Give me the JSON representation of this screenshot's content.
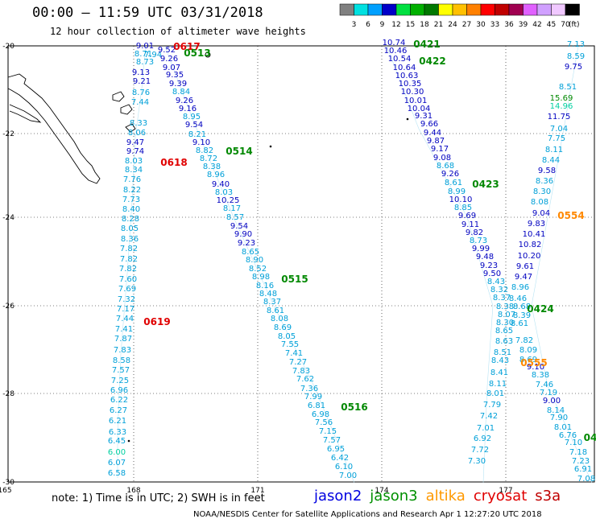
{
  "header": {
    "title": "00:00 – 11:59 UTC 03/31/2018",
    "subtitle": "12 hour collection of altimeter wave heights"
  },
  "colorbar": {
    "bins": [
      {
        "color": "#808080",
        "label": "3"
      },
      {
        "color": "#00e0e0",
        "label": "6"
      },
      {
        "color": "#00a0ff",
        "label": "9"
      },
      {
        "color": "#0000c8",
        "label": "12"
      },
      {
        "color": "#00e040",
        "label": "15"
      },
      {
        "color": "#00b000",
        "label": "18"
      },
      {
        "color": "#007800",
        "label": "21"
      },
      {
        "color": "#ffff00",
        "label": "24"
      },
      {
        "color": "#ffc000",
        "label": "27"
      },
      {
        "color": "#ff8000",
        "label": "30"
      },
      {
        "color": "#ff0000",
        "label": "33"
      },
      {
        "color": "#c00000",
        "label": "36"
      },
      {
        "color": "#a00050",
        "label": "39"
      },
      {
        "color": "#e060ff",
        "label": "42"
      },
      {
        "color": "#d0a0ff",
        "label": "45"
      },
      {
        "color": "#f0c8ff",
        "label": "70"
      },
      {
        "color": "#000000",
        "label": "(ft)"
      }
    ]
  },
  "axes": {
    "x_ticks": [
      "165",
      "168",
      "171",
      "174",
      "177"
    ],
    "y_ticks": [
      "-20",
      "-22",
      "-24",
      "-26",
      "-28",
      "-30"
    ]
  },
  "colors": {
    "c1": "#00a0d8",
    "c2": "#0000c0",
    "c3": "#00d0a0",
    "red": "#e00000",
    "green": "#008800",
    "orange": "#ff8800",
    "jason2": "#0000e0",
    "jason3": "#009000",
    "altika": "#ff9900",
    "cryosat": "#e00000",
    "s3a": "#c00000"
  },
  "tracks": [
    {
      "name": "track-a",
      "points": [
        [
          "9.01",
          "c2"
        ],
        [
          "8.73",
          "c1"
        ],
        [
          "7.94",
          "c1"
        ],
        [
          "8.71",
          "c1"
        ],
        [
          "9.13",
          "c2"
        ],
        [
          "9.21",
          "c2"
        ],
        [
          "8.76",
          "c1"
        ],
        [
          "7.44",
          "c1"
        ],
        [
          "8.33",
          "c1"
        ],
        [
          "8.06",
          "c1"
        ],
        [
          "9.47",
          "c2"
        ],
        [
          "9.74",
          "c2"
        ],
        [
          "8.03",
          "c1"
        ],
        [
          "8.34",
          "c1"
        ],
        [
          "7.76",
          "c1"
        ],
        [
          "8.22",
          "c1"
        ],
        [
          "7.73",
          "c1"
        ],
        [
          "8.40",
          "c1"
        ],
        [
          "8.28",
          "c1"
        ],
        [
          "8.05",
          "c1"
        ],
        [
          "8.36",
          "c1"
        ],
        [
          "7.82",
          "c1"
        ],
        [
          "7.82",
          "c1"
        ],
        [
          "7.82",
          "c1"
        ],
        [
          "7.60",
          "c1"
        ],
        [
          "7.69",
          "c1"
        ],
        [
          "7.32",
          "c1"
        ],
        [
          "7.17",
          "c1"
        ],
        [
          "7.44",
          "c1"
        ],
        [
          "7.41",
          "c1"
        ],
        [
          "7.87",
          "c1"
        ],
        [
          "7.83",
          "c1"
        ],
        [
          "8.58",
          "c1"
        ],
        [
          "7.57",
          "c1"
        ],
        [
          "7.25",
          "c1"
        ],
        [
          "6.96",
          "c1"
        ],
        [
          "6.22",
          "c1"
        ],
        [
          "6.27",
          "c1"
        ],
        [
          "6.21",
          "c1"
        ],
        [
          "6.33",
          "c1"
        ],
        [
          "6.45",
          "c1"
        ],
        [
          "6.00",
          "c3"
        ],
        [
          "6.07",
          "c1"
        ],
        [
          "6.58",
          "c1"
        ]
      ]
    },
    {
      "name": "track-b",
      "points": [
        [
          "9.52",
          "c2"
        ],
        [
          "9.26",
          "c2"
        ],
        [
          "9.07",
          "c2"
        ],
        [
          "9.35",
          "c2"
        ],
        [
          "9.39",
          "c2"
        ],
        [
          "8.84",
          "c1"
        ],
        [
          "9.26",
          "c2"
        ],
        [
          "9.16",
          "c2"
        ],
        [
          "8.95",
          "c1"
        ],
        [
          "9.54",
          "c2"
        ],
        [
          "8.21",
          "c1"
        ],
        [
          "9.10",
          "c2"
        ],
        [
          "8.82",
          "c1"
        ],
        [
          "8.72",
          "c1"
        ],
        [
          "8.38",
          "c1"
        ],
        [
          "8.96",
          "c1"
        ],
        [
          "9.40",
          "c2"
        ],
        [
          "8.03",
          "c1"
        ],
        [
          "10.25",
          "c2"
        ],
        [
          "8.17",
          "c1"
        ],
        [
          "8.57",
          "c1"
        ],
        [
          "9.54",
          "c2"
        ],
        [
          "9.90",
          "c2"
        ],
        [
          "9.23",
          "c2"
        ],
        [
          "8.65",
          "c1"
        ],
        [
          "8.90",
          "c1"
        ],
        [
          "8.52",
          "c1"
        ],
        [
          "8.98",
          "c1"
        ],
        [
          "8.16",
          "c1"
        ],
        [
          "8.48",
          "c1"
        ],
        [
          "8.37",
          "c1"
        ],
        [
          "8.61",
          "c1"
        ],
        [
          "8.08",
          "c1"
        ],
        [
          "8.69",
          "c1"
        ],
        [
          "8.05",
          "c1"
        ],
        [
          "7.55",
          "c1"
        ],
        [
          "7.41",
          "c1"
        ],
        [
          "7.27",
          "c1"
        ],
        [
          "7.83",
          "c1"
        ],
        [
          "7.62",
          "c1"
        ],
        [
          "7.36",
          "c1"
        ],
        [
          "7.99",
          "c1"
        ],
        [
          "6.81",
          "c1"
        ],
        [
          "6.98",
          "c1"
        ],
        [
          "7.56",
          "c1"
        ],
        [
          "7.15",
          "c1"
        ],
        [
          "7.57",
          "c1"
        ],
        [
          "6.95",
          "c1"
        ],
        [
          "6.42",
          "c1"
        ],
        [
          "6.10",
          "c1"
        ],
        [
          "7.00",
          "c1"
        ]
      ]
    },
    {
      "name": "track-c",
      "points": [
        [
          "10.74",
          "c2"
        ],
        [
          "10.46",
          "c2"
        ],
        [
          "10.54",
          "c2"
        ],
        [
          "10.64",
          "c2"
        ],
        [
          "10.63",
          "c2"
        ],
        [
          "10.35",
          "c2"
        ],
        [
          "10.30",
          "c2"
        ],
        [
          "10.01",
          "c2"
        ],
        [
          "10.04",
          "c2"
        ],
        [
          "9.31",
          "c2"
        ],
        [
          "9.66",
          "c2"
        ],
        [
          "9.44",
          "c2"
        ],
        [
          "9.87",
          "c2"
        ],
        [
          "9.17",
          "c2"
        ],
        [
          "9.08",
          "c2"
        ],
        [
          "8.68",
          "c1"
        ],
        [
          "9.26",
          "c2"
        ],
        [
          "8.61",
          "c1"
        ],
        [
          "8.99",
          "c1"
        ],
        [
          "10.10",
          "c2"
        ],
        [
          "8.85",
          "c1"
        ],
        [
          "9.69",
          "c2"
        ],
        [
          "9.11",
          "c2"
        ],
        [
          "9.82",
          "c2"
        ],
        [
          "8.73",
          "c1"
        ],
        [
          "9.99",
          "c2"
        ],
        [
          "9.48",
          "c2"
        ],
        [
          "9.23",
          "c2"
        ],
        [
          "9.50",
          "c2"
        ],
        [
          "8.43",
          "c1"
        ],
        [
          "8.32",
          "c1"
        ],
        [
          "8.37",
          "c1"
        ],
        [
          "8.38",
          "c1"
        ],
        [
          "8.07",
          "c1"
        ],
        [
          "8.30",
          "c1"
        ],
        [
          "8.65",
          "c1"
        ],
        [
          "8.63",
          "c1"
        ],
        [
          "8.51",
          "c1"
        ],
        [
          "8.43",
          "c1"
        ],
        [
          "8.41",
          "c1"
        ],
        [
          "8.11",
          "c1"
        ],
        [
          "8.01",
          "c1"
        ],
        [
          "7.79",
          "c1"
        ],
        [
          "7.42",
          "c1"
        ],
        [
          "7.01",
          "c1"
        ],
        [
          "6.92",
          "c1"
        ],
        [
          "7.72",
          "c1"
        ],
        [
          "7.30",
          "c1"
        ]
      ]
    },
    {
      "name": "track-d",
      "points": [
        [
          "7.13",
          "c1"
        ],
        [
          "8.59",
          "c1"
        ],
        [
          "9.75",
          "c2"
        ],
        [
          "8.51",
          "c1"
        ],
        [
          "15.69",
          "green"
        ],
        [
          "14.96",
          "c3"
        ],
        [
          "11.75",
          "c2"
        ],
        [
          "7.04",
          "c1"
        ],
        [
          "7.75",
          "c1"
        ],
        [
          "8.11",
          "c1"
        ],
        [
          "8.44",
          "c1"
        ],
        [
          "9.58",
          "c2"
        ],
        [
          "8.36",
          "c1"
        ],
        [
          "8.30",
          "c1"
        ],
        [
          "8.08",
          "c1"
        ],
        [
          "9.04",
          "c2"
        ],
        [
          "9.83",
          "c2"
        ],
        [
          "10.41",
          "c2"
        ],
        [
          "10.82",
          "c2"
        ],
        [
          "10.20",
          "c2"
        ],
        [
          "9.61",
          "c2"
        ],
        [
          "9.47",
          "c2"
        ],
        [
          "8.96",
          "c1"
        ],
        [
          "8.46",
          "c1"
        ],
        [
          "8.68",
          "c1"
        ],
        [
          "8.39",
          "c1"
        ],
        [
          "8.61",
          "c1"
        ],
        [
          "7.82",
          "c1"
        ],
        [
          "8.09",
          "c1"
        ],
        [
          "8.69",
          "c1"
        ],
        [
          "9.10",
          "c2"
        ],
        [
          "8.38",
          "c1"
        ],
        [
          "7.46",
          "c1"
        ],
        [
          "7.19",
          "c1"
        ],
        [
          "9.00",
          "c2"
        ],
        [
          "8.14",
          "c1"
        ],
        [
          "7.90",
          "c1"
        ],
        [
          "8.01",
          "c1"
        ],
        [
          "6.76",
          "c1"
        ],
        [
          "7.10",
          "c1"
        ],
        [
          "7.18",
          "c1"
        ],
        [
          "7.23",
          "c1"
        ],
        [
          "6.91",
          "c1"
        ],
        [
          "7.08",
          "c1"
        ]
      ]
    }
  ],
  "time_labels": [
    {
      "text": "0617",
      "color": "red"
    },
    {
      "text": "0513",
      "color": "green"
    },
    {
      "text": "0514",
      "color": "green"
    },
    {
      "text": "0618",
      "color": "red"
    },
    {
      "text": "0515",
      "color": "green"
    },
    {
      "text": "0619",
      "color": "red"
    },
    {
      "text": "0516",
      "color": "green"
    },
    {
      "text": "0421",
      "color": "green"
    },
    {
      "text": "0422",
      "color": "green"
    },
    {
      "text": "0423",
      "color": "green"
    },
    {
      "text": "0554",
      "color": "orange"
    },
    {
      "text": "0424",
      "color": "green"
    },
    {
      "text": "0555",
      "color": "orange"
    },
    {
      "text": "04",
      "color": "green"
    }
  ],
  "note": "note: 1) Time is in UTC; 2) SWH is in feet",
  "legend": [
    {
      "label": "jason2",
      "color": "jason2"
    },
    {
      "label": "jason3",
      "color": "jason3"
    },
    {
      "label": "altika",
      "color": "altika"
    },
    {
      "label": "cryosat",
      "color": "cryosat"
    },
    {
      "label": "s3a",
      "color": "s3a"
    }
  ],
  "footer": "NOAA/NESDIS Center for Satellite Applications and Research   Apr  1 12:27:20 UTC 2018"
}
